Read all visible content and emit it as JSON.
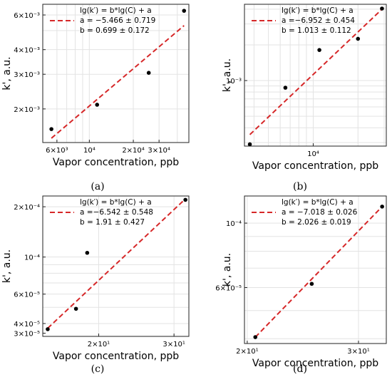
{
  "colors": {
    "fit_line": "#d62728",
    "marker": "#000000",
    "grid": "#e3e3e3",
    "frame": "#222222"
  },
  "chart_data": [
    {
      "panel": "(a)",
      "type": "scatter",
      "xscale": "log",
      "yscale": "log",
      "xlabel": "Vapor concentration, ppb",
      "ylabel": "k', a.u.",
      "xlim": [
        4800,
        48000
      ],
      "ylim": [
        0.00135,
        0.0068
      ],
      "xticks": [
        {
          "v": 6000,
          "l": "6×10³"
        },
        {
          "v": 10000,
          "l": "10⁴"
        },
        {
          "v": 20000,
          "l": "2×10⁴"
        },
        {
          "v": 30000,
          "l": "3×10⁴"
        }
      ],
      "yticks": [
        {
          "v": 0.002,
          "l": "2×10⁻³"
        },
        {
          "v": 0.003,
          "l": "3×10⁻³"
        },
        {
          "v": 0.004,
          "l": "4×10⁻³"
        },
        {
          "v": 0.006,
          "l": "6×10⁻³"
        }
      ],
      "xgrid": [
        6000,
        7000,
        8000,
        9000,
        10000,
        20000,
        30000,
        40000
      ],
      "ygrid": [
        0.002,
        0.003,
        0.004,
        0.005,
        0.006
      ],
      "points": {
        "x": [
          5500,
          11300,
          25500,
          44500
        ],
        "y": [
          0.00158,
          0.0021,
          0.00305,
          0.0063
        ]
      },
      "fit": {
        "x": [
          5500,
          44500
        ],
        "y": [
          0.00142,
          0.0053
        ]
      },
      "legend": {
        "equation": "lg(k′) = b*lg(C) + a",
        "a": "a = −5.466 ± 0.719",
        "b": "b = 0.699 ± 0.172",
        "position": "upper-left"
      }
    },
    {
      "panel": "(b)",
      "type": "scatter",
      "xscale": "log",
      "yscale": "log",
      "xlabel": "Vapor concentration, ppb",
      "ylabel": "k', a.u.",
      "xlim": [
        3450,
        31000
      ],
      "ylim": [
        0.00028,
        0.0044
      ],
      "xticks": [
        {
          "v": 10000,
          "l": "10⁴"
        }
      ],
      "yticks": [
        {
          "v": 0.001,
          "l": "10⁻³"
        }
      ],
      "xgrid": [
        4000,
        5000,
        6000,
        7000,
        8000,
        9000,
        10000,
        20000,
        30000
      ],
      "ygrid": [
        0.0003,
        0.0004,
        0.0005,
        0.0006,
        0.0007,
        0.0008,
        0.0009,
        0.001,
        0.002,
        0.003,
        0.004
      ],
      "points": {
        "x": [
          3750,
          6500,
          11000,
          20000,
          29000
        ],
        "y": [
          0.00029,
          0.00087,
          0.00181,
          0.00225,
          0.00405
        ]
      },
      "fit": {
        "x": [
          3750,
          29000
        ],
        "y": [
          0.00035,
          0.004
        ]
      },
      "legend": {
        "equation": "lg(k′) = b*lg(C) + a",
        "a": "a =−6.952 ± 0.454",
        "b": "b = 1.013 ± 0.112",
        "position": "upper-left"
      }
    },
    {
      "panel": "(c)",
      "type": "scatter",
      "xscale": "log",
      "yscale": "log",
      "xlabel": "Vapor concentration, ppb",
      "ylabel": "k', a.u.",
      "xlim": [
        14.8,
        32.5
      ],
      "ylim": [
        3.35e-05,
        0.000232
      ],
      "xticks": [
        {
          "v": 20,
          "l": "2×10¹"
        },
        {
          "v": 30,
          "l": "3×10¹"
        }
      ],
      "yticks": [
        {
          "v": 3.5e-05,
          "l": "3×10⁻⁵"
        },
        {
          "v": 4e-05,
          "l": "4×10⁻⁵"
        },
        {
          "v": 6e-05,
          "l": "6×10⁻⁵"
        },
        {
          "v": 0.0001,
          "l": "10⁻⁴"
        },
        {
          "v": 0.0002,
          "l": "2×10⁻⁴"
        }
      ],
      "xgrid": [
        20,
        30
      ],
      "ygrid": [
        4e-05,
        5e-05,
        6e-05,
        7e-05,
        8e-05,
        9e-05,
        0.0001,
        0.0002
      ],
      "points": {
        "x": [
          15.2,
          17.7,
          18.8,
          31.9
        ],
        "y": [
          3.7e-05,
          4.9e-05,
          0.000106,
          0.00022
        ]
      },
      "fit": {
        "x": [
          15.2,
          31.9
        ],
        "y": [
          3.75e-05,
          0.000223
        ]
      },
      "legend": {
        "equation": "lg(k′) = b*lg(C) + a",
        "a": "a =−6.542 ± 0.548",
        "b": "b = 1.91 ± 0.427",
        "position": "upper-left"
      }
    },
    {
      "panel": "(d)",
      "type": "scatter",
      "xscale": "log",
      "yscale": "log",
      "xlabel": "Vapor concentration, ppb",
      "ylabel": "k', a.u.",
      "xlim": [
        19.8,
        33.2
      ],
      "ylim": [
        3.85e-05,
        0.000124
      ],
      "xticks": [
        {
          "v": 20,
          "l": "2×10¹"
        },
        {
          "v": 30,
          "l": "3×10¹"
        }
      ],
      "yticks": [
        {
          "v": 6e-05,
          "l": "6×10⁻⁵"
        },
        {
          "v": 0.0001,
          "l": "10⁻⁴"
        }
      ],
      "xgrid": [
        20,
        30
      ],
      "ygrid": [
        4e-05,
        5e-05,
        6e-05,
        7e-05,
        8e-05,
        9e-05,
        0.0001
      ],
      "points": {
        "x": [
          20.6,
          25.3,
          32.7
        ],
        "y": [
          4.05e-05,
          6.18e-05,
          0.000114
        ]
      },
      "fit": {
        "x": [
          20.6,
          32.7
        ],
        "y": [
          4.05e-05,
          0.000114
        ]
      },
      "legend": {
        "equation": "lg(k′) = b*lg(C) + a",
        "a": "a = −7.018 ± 0.026",
        "b": "b = 2.026 ± 0.019",
        "position": "upper-left"
      }
    }
  ]
}
